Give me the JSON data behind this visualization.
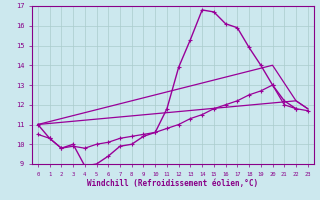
{
  "xlabel": "Windchill (Refroidissement éolien,°C)",
  "bg_color": "#cce8ee",
  "line_color": "#990099",
  "grid_color": "#aacccc",
  "axis_color": "#880088",
  "text_color": "#880088",
  "xlim": [
    -0.5,
    23.5
  ],
  "ylim": [
    9,
    17
  ],
  "xticks": [
    0,
    1,
    2,
    3,
    4,
    5,
    6,
    7,
    8,
    9,
    10,
    11,
    12,
    13,
    14,
    15,
    16,
    17,
    18,
    19,
    20,
    21,
    22,
    23
  ],
  "yticks": [
    9,
    10,
    11,
    12,
    13,
    14,
    15,
    16,
    17
  ],
  "series": [
    {
      "x": [
        0,
        1,
        2,
        3,
        4,
        5,
        6,
        7,
        8,
        9,
        10,
        11,
        12,
        13,
        14,
        15,
        16,
        17,
        18,
        19,
        20,
        21,
        22
      ],
      "y": [
        11.0,
        10.3,
        9.8,
        10.0,
        8.9,
        9.0,
        9.4,
        9.9,
        10.0,
        10.4,
        10.6,
        11.8,
        13.9,
        15.3,
        16.8,
        16.7,
        16.1,
        15.9,
        14.9,
        14.0,
        13.0,
        12.2,
        11.8
      ],
      "marker": true,
      "linewidth": 1.0
    },
    {
      "x": [
        0,
        22,
        23
      ],
      "y": [
        11.0,
        12.2,
        11.8
      ],
      "marker": false,
      "linewidth": 0.9
    },
    {
      "x": [
        0,
        20,
        22,
        23
      ],
      "y": [
        11.0,
        14.0,
        12.2,
        11.8
      ],
      "marker": false,
      "linewidth": 0.9
    },
    {
      "x": [
        0,
        1,
        2,
        3,
        4,
        5,
        6,
        7,
        8,
        9,
        10,
        11,
        12,
        13,
        14,
        15,
        16,
        17,
        18,
        19,
        20,
        21,
        22,
        23
      ],
      "y": [
        10.5,
        10.3,
        9.8,
        9.9,
        9.8,
        10.0,
        10.1,
        10.3,
        10.4,
        10.5,
        10.6,
        10.8,
        11.0,
        11.3,
        11.5,
        11.8,
        12.0,
        12.2,
        12.5,
        12.7,
        13.0,
        12.0,
        11.8,
        11.7
      ],
      "marker": true,
      "linewidth": 0.9
    }
  ]
}
